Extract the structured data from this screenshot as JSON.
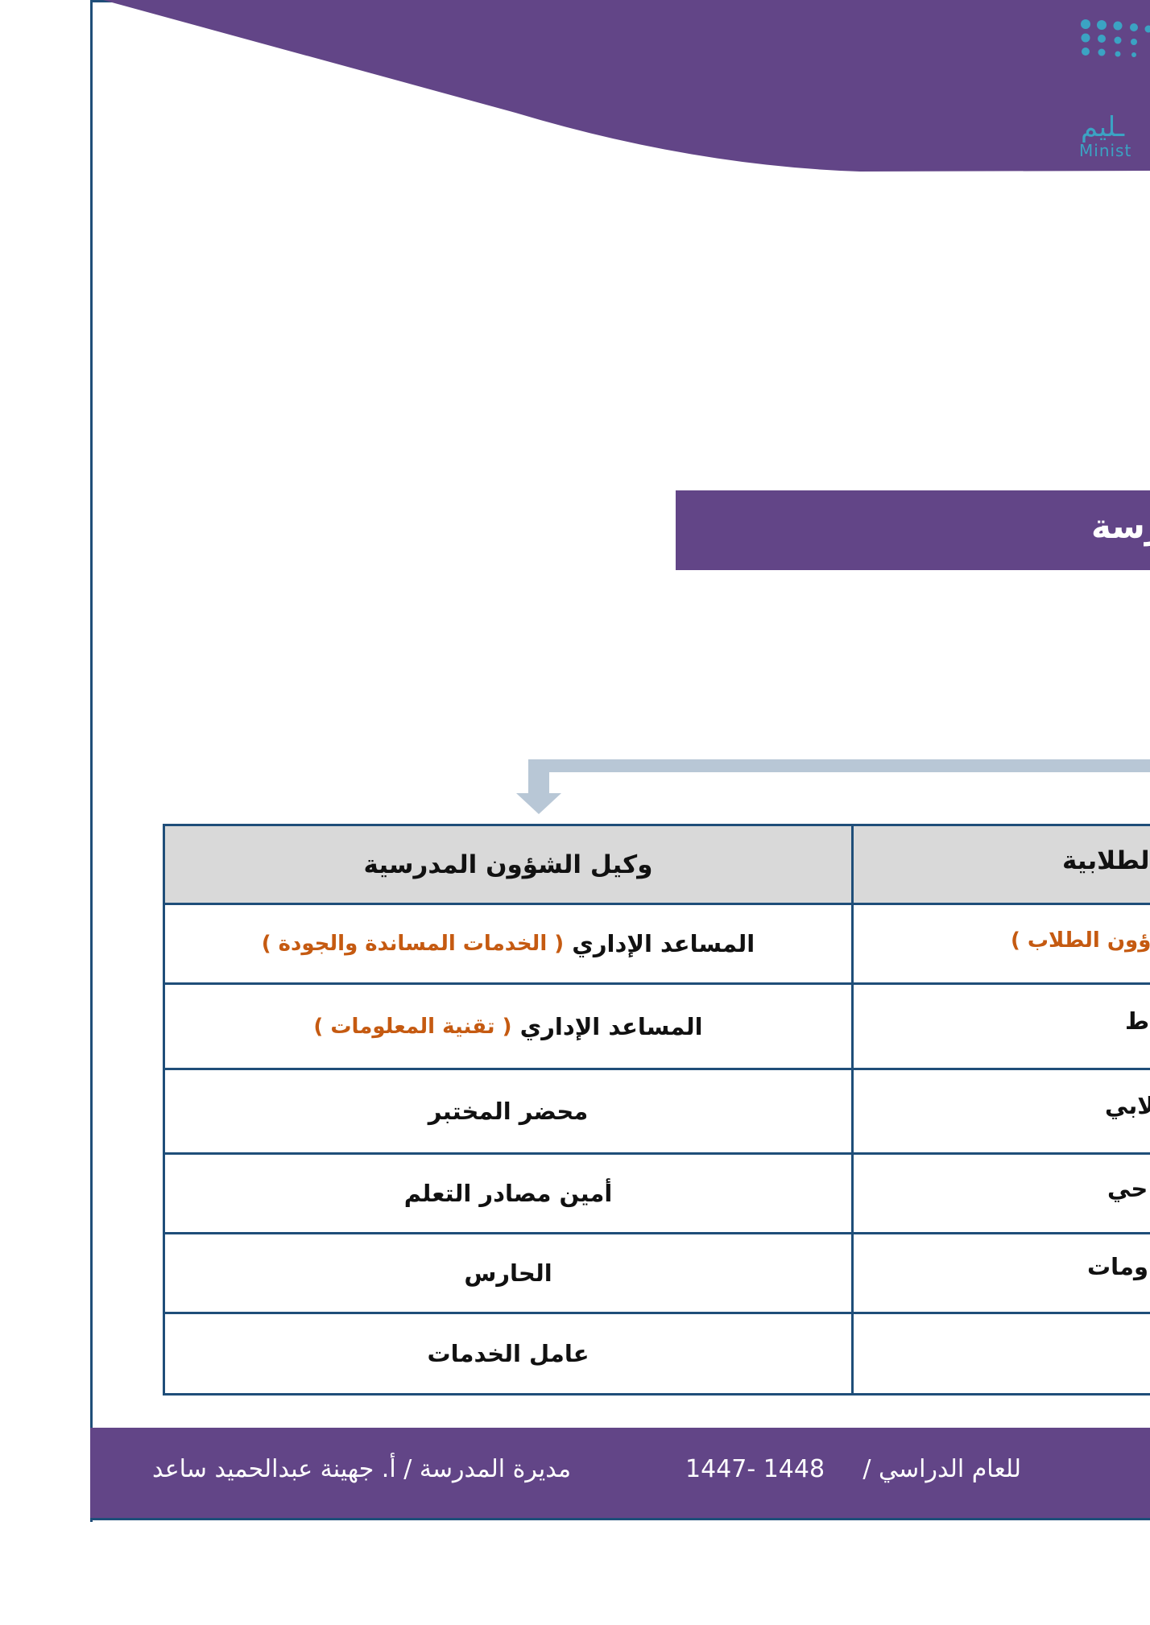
{
  "colors": {
    "purple": "#624587",
    "border_blue": "#1f4e79",
    "orange": "#c55a11",
    "header_gray": "#d9d9d9",
    "arrow": "#b8c7d6",
    "logo_teal": "#3ba3c3"
  },
  "logo": {
    "arabic_fragment": "ـليم",
    "english_fragment": "Minist"
  },
  "title": {
    "visible_text": "رسة"
  },
  "table": {
    "left_column": {
      "header": "وكيل الشؤون المدرسية",
      "rows": [
        {
          "main": "المساعد الإداري",
          "note": "( الخدمات المساندة والجودة )"
        },
        {
          "main": "المساعد الإداري",
          "note": "( تقنية المعلومات )"
        },
        {
          "main": "محضر المختبر"
        },
        {
          "main": "أمين مصادر التعلم"
        },
        {
          "main": "الحارس"
        },
        {
          "main": "عامل الخدمات"
        }
      ]
    },
    "right_column": {
      "header": "لطلابية",
      "rows": [
        {
          "note": "ؤون الطلاب )"
        },
        {
          "main": "ط"
        },
        {
          "main": "لابي"
        },
        {
          "main": "حي"
        },
        {
          "main": "ومات"
        },
        {
          "main": ""
        }
      ]
    }
  },
  "footer": {
    "year_label": "للعام الدراسي /",
    "year_value": "1447- 1448",
    "principal": "مديرة المدرسة / أ. جهينة عبدالحميد ساعد"
  }
}
